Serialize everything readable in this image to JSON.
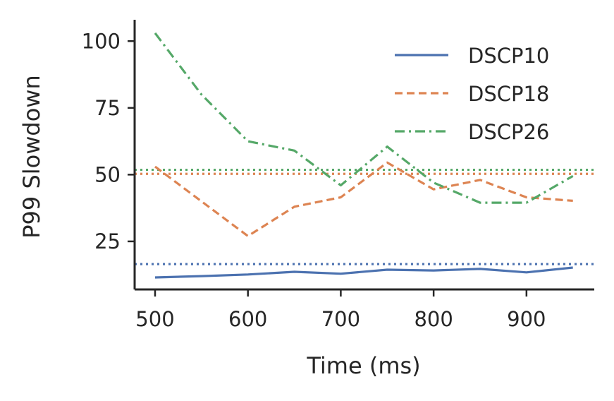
{
  "chart_data": {
    "type": "line",
    "xlabel": "Time (ms)",
    "ylabel": "P99 Slowdown",
    "xlim": [
      478,
      973
    ],
    "ylim": [
      7,
      108
    ],
    "xticks": [
      500,
      600,
      700,
      800,
      900
    ],
    "yticks": [
      25,
      50,
      75,
      100
    ],
    "grid": false,
    "legend": "top-right",
    "series": [
      {
        "name": "DSCP10",
        "color": "#4c72b0",
        "dash": "solid",
        "x": [
          500,
          550,
          600,
          650,
          700,
          750,
          800,
          850,
          900,
          950
        ],
        "y": [
          11.5,
          12.0,
          12.6,
          13.6,
          12.9,
          14.4,
          14.1,
          14.7,
          13.4,
          15.2
        ]
      },
      {
        "name": "DSCP18",
        "color": "#dd8452",
        "dash": "dashed",
        "x": [
          500,
          550,
          600,
          650,
          700,
          750,
          800,
          850,
          900,
          950
        ],
        "y": [
          53.0,
          40.0,
          27.0,
          38.0,
          41.5,
          54.5,
          44.5,
          48.0,
          41.5,
          40.2
        ]
      },
      {
        "name": "DSCP26",
        "color": "#55a868",
        "dash": "dashdot",
        "x": [
          500,
          550,
          600,
          650,
          700,
          750,
          800,
          850,
          900,
          950
        ],
        "y": [
          103.0,
          80.0,
          62.5,
          59.0,
          46.0,
          60.5,
          47.0,
          39.5,
          39.5,
          49.5
        ]
      }
    ],
    "reference_lines": [
      {
        "series": "DSCP10",
        "color": "#4c72b0",
        "y": 16.5
      },
      {
        "series": "DSCP18",
        "color": "#dd8452",
        "y": 50.3
      },
      {
        "series": "DSCP26",
        "color": "#55a868",
        "y": 51.8
      }
    ]
  }
}
